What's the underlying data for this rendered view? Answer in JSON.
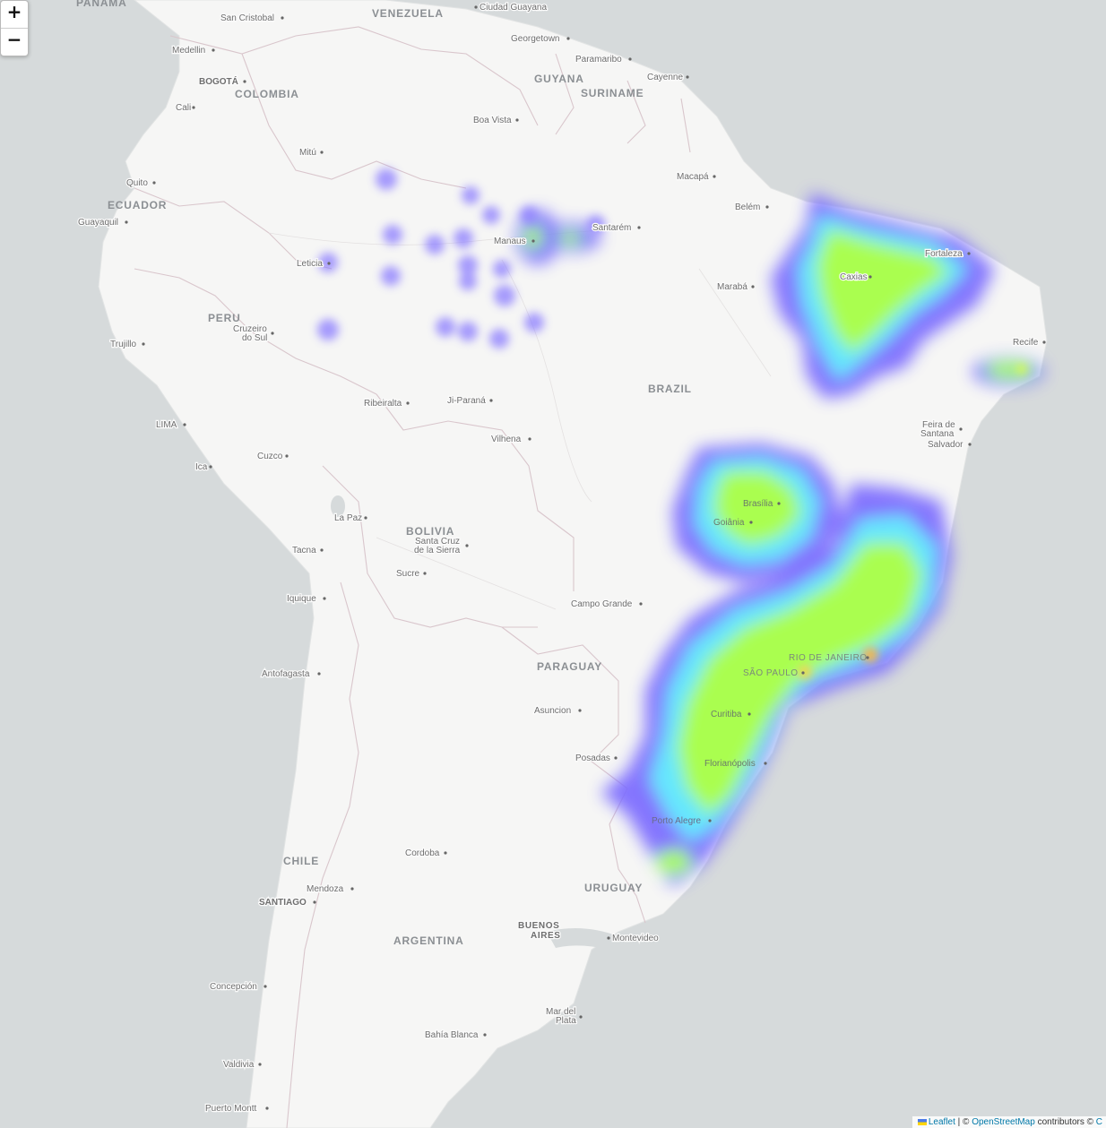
{
  "controls": {
    "zoom_in": "+",
    "zoom_out": "−"
  },
  "attribution": {
    "leaflet": "Leaflet",
    "sep": " | © ",
    "osm": "OpenStreetMap",
    "tail": " contributors © ",
    "carto": "C"
  },
  "colors": {
    "ocean": "#d6dadb",
    "land": "#f6f6f5",
    "border": "#d9c6cc",
    "heat_low": "#6a5cff",
    "heat_mid": "#5de8ff",
    "heat_high": "#9cff3c",
    "heat_peak": "#ffd23c"
  },
  "countries": [
    "PANAMA",
    "VENEZUELA",
    "COLOMBIA",
    "GUYANA",
    "SURINAME",
    "ECUADOR",
    "PERU",
    "BRAZIL",
    "BOLIVIA",
    "PARAGUAY",
    "CHILE",
    "ARGENTINA",
    "URUGUAY"
  ],
  "cities": [
    "San Cristobal",
    "Ciudad Guayana",
    "Georgetown",
    "Paramaribo",
    "Cayenne",
    "Medellin",
    "BOGOTÁ",
    "Cali",
    "Boa Vista",
    "Mitú",
    "Macapá",
    "Quito",
    "Belém",
    "Guayaquil",
    "Santarém",
    "Manaus",
    "Leticia",
    "Fortaleza",
    "Caxias",
    "Marabá",
    "Cruzeiro do Sul",
    "Trujillo",
    "Recife",
    "Ribeiralta",
    "Ji-Paraná",
    "LIMA",
    "Feira de Santana",
    "Salvador",
    "Vilhena",
    "Cuzco",
    "Ica",
    "Brasília",
    "La Paz",
    "Goiânia",
    "Santa Cruz de la Sierra",
    "Tacna",
    "Sucre",
    "Iquique",
    "Campo Grande",
    "RIO DE JANEIRO",
    "SÃO PAULO",
    "Antofagasta",
    "Asuncion",
    "Curitiba",
    "Posadas",
    "Florianópolis",
    "Porto Alegre",
    "Cordoba",
    "Mendoza",
    "SANTIAGO",
    "BUENOS AIRES",
    "Montevideo",
    "Concepción",
    "Mar del Plata",
    "Bahía Blanca",
    "Valdivia",
    "Puerto Montt"
  ]
}
